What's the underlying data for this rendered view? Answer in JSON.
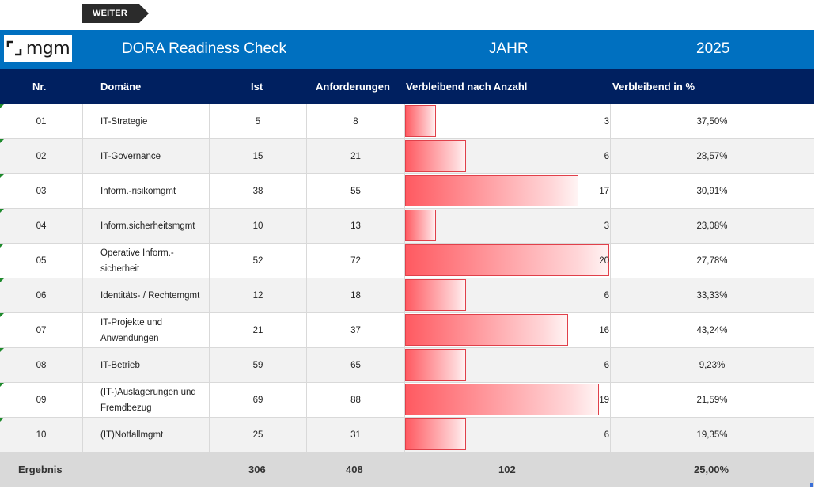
{
  "toolbar": {
    "weiter_label": "WEITER"
  },
  "title_bar": {
    "logo_text": "mgm",
    "title": "DORA Readiness Check",
    "jahr_label": "JAHR",
    "jahr_value": "2025"
  },
  "columns": {
    "nr": "Nr.",
    "domaene": "Domäne",
    "ist": "Ist",
    "anforderungen": "Anforderungen",
    "verbleibend_anzahl": "Verbleibend nach Anzahl",
    "verbleibend_prozent": "Verbleibend in %"
  },
  "rows": [
    {
      "nr": "01",
      "domaene": "IT-Strategie",
      "ist": "5",
      "anforderungen": "8",
      "verbleibend": "3",
      "prozent": "37,50%"
    },
    {
      "nr": "02",
      "domaene": "IT-Governance",
      "ist": "15",
      "anforderungen": "21",
      "verbleibend": "6",
      "prozent": "28,57%"
    },
    {
      "nr": "03",
      "domaene": "Inform.-risikomgmt",
      "ist": "38",
      "anforderungen": "55",
      "verbleibend": "17",
      "prozent": "30,91%"
    },
    {
      "nr": "04",
      "domaene": "Inform.sicherheitsmgmt",
      "ist": "10",
      "anforderungen": "13",
      "verbleibend": "3",
      "prozent": "23,08%"
    },
    {
      "nr": "05",
      "domaene": "Operative Inform.-sicherheit",
      "ist": "52",
      "anforderungen": "72",
      "verbleibend": "20",
      "prozent": "27,78%"
    },
    {
      "nr": "06",
      "domaene": "Identitäts- / Rechtemgmt",
      "ist": "12",
      "anforderungen": "18",
      "verbleibend": "6",
      "prozent": "33,33%"
    },
    {
      "nr": "07",
      "domaene": "IT-Projekte und Anwendungen",
      "ist": "21",
      "anforderungen": "37",
      "verbleibend": "16",
      "prozent": "43,24%"
    },
    {
      "nr": "08",
      "domaene": "IT-Betrieb",
      "ist": "59",
      "anforderungen": "65",
      "verbleibend": "6",
      "prozent": "9,23%"
    },
    {
      "nr": "09",
      "domaene": "(IT-)Auslagerungen und Fremdbezug",
      "ist": "69",
      "anforderungen": "88",
      "verbleibend": "19",
      "prozent": "21,59%"
    },
    {
      "nr": "10",
      "domaene": "(IT)Notfallmgmt",
      "ist": "25",
      "anforderungen": "31",
      "verbleibend": "6",
      "prozent": "19,35%"
    }
  ],
  "summary": {
    "label": "Ergebnis",
    "ist": "306",
    "anforderungen": "408",
    "verbleibend": "102",
    "prozent": "25,00%"
  },
  "bar_max": 20,
  "colors": {
    "title_bar": "#0070c0",
    "header": "#002060",
    "bar": "#ff5a61",
    "flag": "#1e8a2c"
  }
}
